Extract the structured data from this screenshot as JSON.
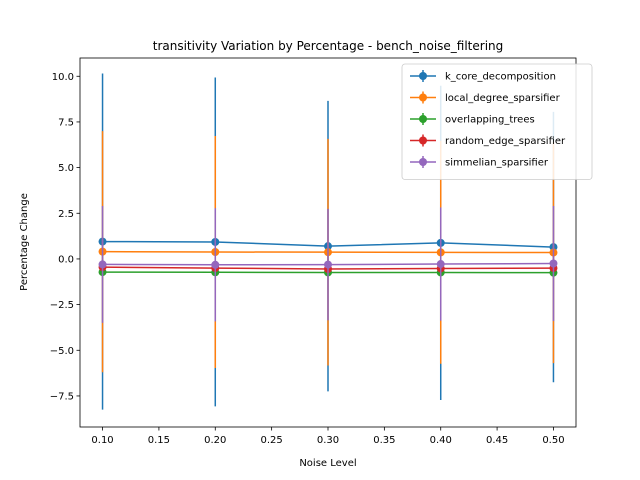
{
  "chart_data": {
    "type": "line",
    "title": "transitivity Variation by Percentage - bench_noise_filtering",
    "xlabel": "Noise Level",
    "ylabel": "Percentage Change",
    "x": [
      0.1,
      0.2,
      0.3,
      0.4,
      0.5
    ],
    "xlim": [
      0.08,
      0.52
    ],
    "ylim": [
      -9.2,
      11.0
    ],
    "xticks": [
      "0.10",
      "0.15",
      "0.20",
      "0.25",
      "0.30",
      "0.35",
      "0.40",
      "0.45",
      "0.50"
    ],
    "yticks": [
      "−7.5",
      "−5.0",
      "−2.5",
      "0.0",
      "2.5",
      "5.0",
      "7.5",
      "10.0"
    ],
    "grid": false,
    "legend_position": "top-right",
    "series": [
      {
        "name": "k_core_decomposition",
        "color": "#1f77b4",
        "values": [
          0.95,
          0.93,
          0.7,
          0.88,
          0.65
        ],
        "errors": [
          9.2,
          9.0,
          7.95,
          8.6,
          7.4
        ]
      },
      {
        "name": "local_degree_sparsifier",
        "color": "#ff7f0e",
        "values": [
          0.4,
          0.38,
          0.37,
          0.36,
          0.35
        ],
        "errors": [
          6.6,
          6.35,
          6.2,
          6.1,
          6.05
        ]
      },
      {
        "name": "overlapping_trees",
        "color": "#2ca02c",
        "values": [
          -0.72,
          -0.73,
          -0.74,
          -0.74,
          -0.75
        ],
        "errors": [
          0.05,
          0.05,
          0.05,
          0.05,
          0.05
        ]
      },
      {
        "name": "random_edge_sparsifier",
        "color": "#d62728",
        "values": [
          -0.45,
          -0.5,
          -0.55,
          -0.52,
          -0.5
        ],
        "errors": [
          0.12,
          0.12,
          0.12,
          0.12,
          0.12
        ]
      },
      {
        "name": "simmelian_sparsifier",
        "color": "#9467bd",
        "values": [
          -0.3,
          -0.32,
          -0.31,
          -0.28,
          -0.25
        ],
        "errors": [
          3.2,
          3.1,
          3.05,
          3.1,
          3.15
        ]
      }
    ]
  }
}
